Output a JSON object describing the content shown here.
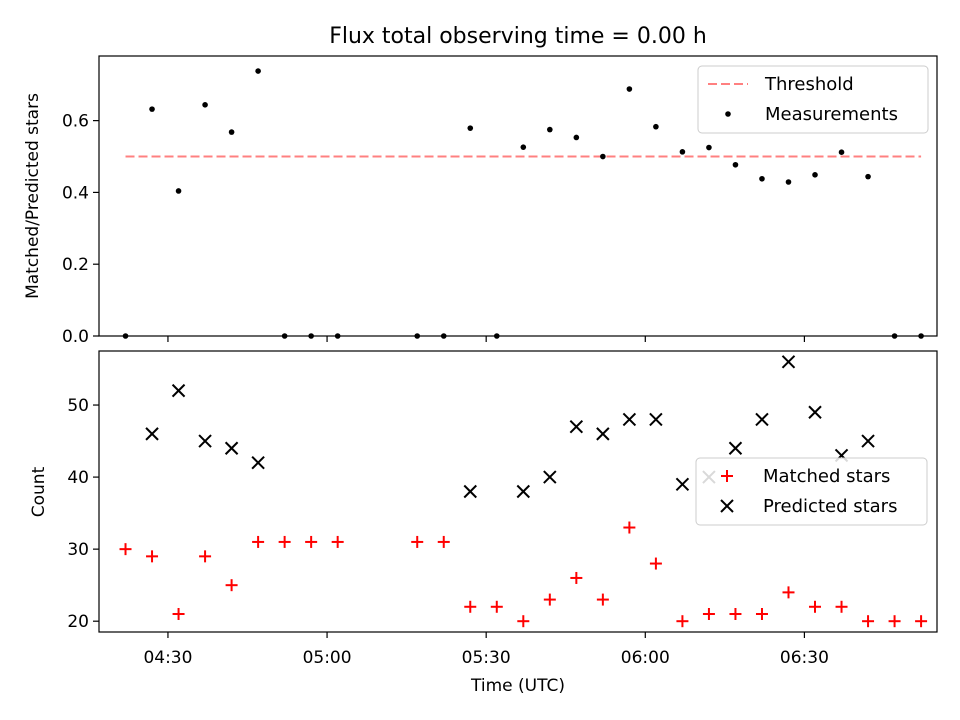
{
  "chart_data": [
    {
      "type": "scatter",
      "title": "Flux total observing time = 0.00 h",
      "ylabel": "Matched/Predicted stars",
      "xlabel": "",
      "xlim": [
        "04:17",
        "06:55"
      ],
      "ylim": [
        0,
        0.78
      ],
      "yticks": [
        "0.0",
        "0.2",
        "0.4",
        "0.6"
      ],
      "legend": {
        "placement": "top-right",
        "threshold_label": "Threshold",
        "measurements_label": "Measurements"
      },
      "threshold": {
        "value": 0.5,
        "x_range": [
          "04:22",
          "06:52"
        ],
        "color": "#ff8080"
      },
      "series": [
        {
          "name": "Measurements",
          "color": "#000000",
          "x": [
            "04:22",
            "04:27",
            "04:32",
            "04:37",
            "04:42",
            "04:47",
            "04:52",
            "04:57",
            "05:02",
            "05:17",
            "05:22",
            "05:27",
            "05:32",
            "05:37",
            "05:42",
            "05:47",
            "05:52",
            "05:57",
            "06:02",
            "06:07",
            "06:12",
            "06:17",
            "06:22",
            "06:27",
            "06:32",
            "06:37",
            "06:42",
            "06:47",
            "06:52"
          ],
          "values": [
            0.0,
            0.632,
            0.404,
            0.644,
            0.568,
            0.738,
            0.0,
            0.0,
            0.0,
            0.0,
            0.0,
            0.579,
            0.0,
            0.526,
            0.575,
            0.553,
            0.5,
            0.688,
            0.583,
            0.513,
            0.525,
            0.477,
            0.438,
            0.429,
            0.449,
            0.512,
            0.444,
            0.0,
            0.0
          ]
        }
      ]
    },
    {
      "type": "scatter",
      "title": "",
      "ylabel": "Count",
      "xlabel": "Time (UTC)",
      "xlim": [
        "04:17",
        "06:55"
      ],
      "ylim": [
        18.5,
        57.5
      ],
      "yticks": [
        "20",
        "30",
        "40",
        "50"
      ],
      "xticks": [
        "04:30",
        "05:00",
        "05:30",
        "06:00",
        "06:30"
      ],
      "legend": {
        "placement": "center-right",
        "matched_label": "Matched stars",
        "predicted_label": "Predicted stars"
      },
      "series": [
        {
          "name": "Matched stars",
          "marker": "plus",
          "color": "#ff0000",
          "x": [
            "04:22",
            "04:27",
            "04:32",
            "04:37",
            "04:42",
            "04:47",
            "04:52",
            "04:57",
            "05:02",
            "05:17",
            "05:22",
            "05:27",
            "05:32",
            "05:37",
            "05:42",
            "05:47",
            "05:52",
            "05:57",
            "06:02",
            "06:07",
            "06:12",
            "06:17",
            "06:22",
            "06:27",
            "06:32",
            "06:37",
            "06:42",
            "06:47",
            "06:52"
          ],
          "values": [
            30,
            29,
            21,
            29,
            25,
            31,
            31,
            31,
            31,
            31,
            31,
            22,
            22,
            20,
            23,
            26,
            23,
            33,
            28,
            20,
            21,
            21,
            21,
            24,
            22,
            22,
            20,
            20,
            20
          ]
        },
        {
          "name": "Predicted stars",
          "marker": "x",
          "color": "#000000",
          "x": [
            "04:27",
            "04:32",
            "04:37",
            "04:42",
            "04:47",
            "05:27",
            "05:37",
            "05:42",
            "05:47",
            "05:52",
            "05:57",
            "06:02",
            "06:07",
            "06:12",
            "06:17",
            "06:22",
            "06:27",
            "06:32",
            "06:37",
            "06:42"
          ],
          "values": [
            46,
            52,
            45,
            44,
            42,
            38,
            38,
            40,
            47,
            46,
            48,
            48,
            39,
            40,
            44,
            48,
            56,
            49,
            43,
            45
          ]
        }
      ]
    }
  ]
}
